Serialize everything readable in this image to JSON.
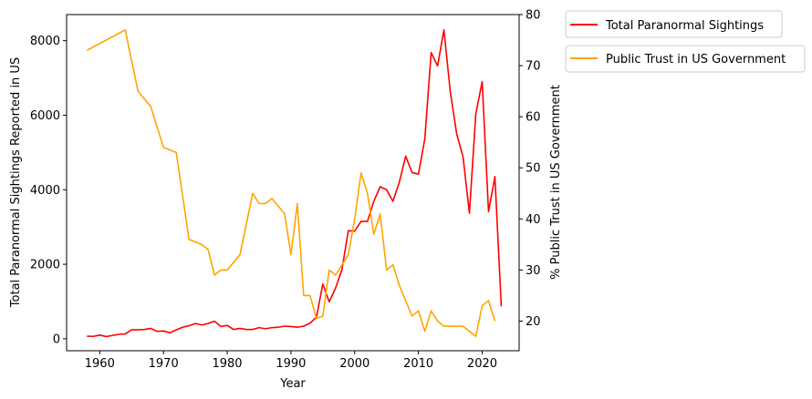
{
  "chart_data": {
    "type": "line",
    "xlabel": "Year",
    "ylabel_left": "Total Paranormal Sightings Reported in US",
    "ylabel_right": "% Public Trust in US Government",
    "xlim": [
      1954.8,
      2025.8
    ],
    "ylim_left": [
      -320,
      8700
    ],
    "ylim_right": [
      14.2,
      80
    ],
    "xticks": [
      1960,
      1970,
      1980,
      1990,
      2000,
      2010,
      2020
    ],
    "yticks_left": [
      0,
      2000,
      4000,
      6000,
      8000
    ],
    "yticks_right": [
      20,
      30,
      40,
      50,
      60,
      70,
      80
    ],
    "grid": false,
    "legend_placement": "outside top-right",
    "series": [
      {
        "name": "Total Paranormal Sightings",
        "axis": "left",
        "color": "#ff0000",
        "x": [
          1958,
          1959,
          1960,
          1961,
          1962,
          1963,
          1964,
          1965,
          1966,
          1967,
          1968,
          1969,
          1970,
          1971,
          1972,
          1973,
          1974,
          1975,
          1976,
          1977,
          1978,
          1979,
          1980,
          1981,
          1982,
          1983,
          1984,
          1985,
          1986,
          1987,
          1988,
          1989,
          1990,
          1991,
          1992,
          1993,
          1994,
          1995,
          1996,
          1997,
          1998,
          1999,
          2000,
          2001,
          2002,
          2003,
          2004,
          2005,
          2006,
          2007,
          2008,
          2009,
          2010,
          2011,
          2012,
          2013,
          2014,
          2015,
          2016,
          2017,
          2018,
          2019,
          2020,
          2021,
          2022,
          2023
        ],
        "values": [
          70,
          65,
          100,
          60,
          90,
          120,
          130,
          240,
          240,
          250,
          280,
          200,
          210,
          160,
          240,
          310,
          350,
          410,
          370,
          410,
          470,
          330,
          360,
          250,
          280,
          250,
          250,
          300,
          270,
          300,
          310,
          340,
          330,
          310,
          340,
          420,
          580,
          1470,
          990,
          1360,
          1860,
          2900,
          2890,
          3150,
          3150,
          3690,
          4080,
          4000,
          3690,
          4200,
          4900,
          4460,
          4420,
          5360,
          7680,
          7320,
          8290,
          6630,
          5500,
          4880,
          3370,
          6030,
          6900,
          3410,
          4350,
          870
        ]
      },
      {
        "name": "Public Trust in US Government",
        "axis": "right",
        "color": "#ffa500",
        "x": [
          1958,
          1964,
          1966,
          1968,
          1970,
          1972,
          1974,
          1976,
          1977,
          1978,
          1979,
          1980,
          1982,
          1984,
          1985,
          1986,
          1987,
          1989,
          1990,
          1991,
          1992,
          1993,
          1994,
          1995,
          1996,
          1997,
          1998,
          1999,
          2000,
          2001,
          2002,
          2003,
          2004,
          2005,
          2006,
          2007,
          2008,
          2009,
          2010,
          2011,
          2012,
          2013,
          2014,
          2015,
          2016,
          2017,
          2018,
          2019,
          2020,
          2021,
          2022
        ],
        "values": [
          73,
          77,
          65,
          62,
          54,
          53,
          36,
          35,
          34,
          29,
          30,
          30,
          33,
          45,
          43,
          43,
          44,
          41,
          33,
          43,
          25,
          25,
          20.5,
          21,
          30,
          29,
          31,
          33,
          40,
          49,
          45,
          37,
          41,
          30,
          31,
          27,
          24,
          21,
          22,
          18,
          22,
          20,
          19,
          19,
          19,
          19,
          18,
          17,
          23,
          24,
          20
        ]
      }
    ]
  }
}
